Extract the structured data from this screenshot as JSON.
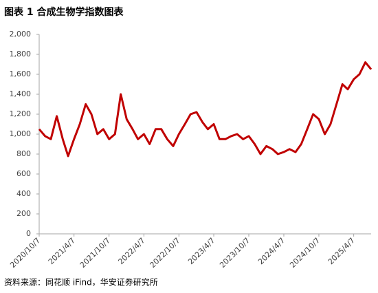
{
  "chart_data": {
    "type": "line",
    "title": "图表 1 合成生物学指数图表",
    "source": "资料来源：同花顺 iFind，华安证券研究所",
    "color": "#c00000",
    "x": [
      "2020/10/7",
      "2020/11/7",
      "2020/12/7",
      "2021/1/7",
      "2021/2/7",
      "2021/3/7",
      "2021/4/7",
      "2021/5/7",
      "2021/6/7",
      "2021/7/7",
      "2021/8/7",
      "2021/9/7",
      "2021/10/7",
      "2021/11/7",
      "2021/12/7",
      "2022/1/7",
      "2022/2/7",
      "2022/3/7",
      "2022/4/7",
      "2022/5/7",
      "2022/6/7",
      "2022/7/7",
      "2022/8/7",
      "2022/9/7",
      "2022/10/7",
      "2022/11/7",
      "2022/12/7",
      "2023/1/7",
      "2023/2/7",
      "2023/3/7",
      "2023/4/7",
      "2023/5/7",
      "2023/6/7",
      "2023/7/7",
      "2023/8/7",
      "2023/9/7",
      "2023/10/7",
      "2023/11/7",
      "2023/12/7",
      "2024/1/7",
      "2024/2/7",
      "2024/3/7",
      "2024/4/7",
      "2024/5/7",
      "2024/6/7",
      "2024/7/7",
      "2024/8/7",
      "2024/9/7",
      "2024/10/7",
      "2024/11/7",
      "2024/12/7",
      "2025/1/7",
      "2025/2/7",
      "2025/3/7",
      "2025/4/7",
      "2025/5/7",
      "2025/6/7",
      "2025/7/7"
    ],
    "values": [
      1050,
      980,
      950,
      1180,
      950,
      780,
      950,
      1100,
      1300,
      1200,
      1000,
      1050,
      950,
      1000,
      1400,
      1150,
      1050,
      950,
      1000,
      900,
      1050,
      1050,
      950,
      880,
      1000,
      1100,
      1200,
      1220,
      1120,
      1050,
      1100,
      950,
      950,
      980,
      1000,
      950,
      980,
      900,
      800,
      880,
      850,
      800,
      820,
      850,
      820,
      900,
      1050,
      1200,
      1150,
      1000,
      1100,
      1300,
      1500,
      1450,
      1550,
      1600,
      1720,
      1650
    ],
    "xticks": [
      "2020/10/7",
      "2021/4/7",
      "2021/10/7",
      "2022/4/7",
      "2022/10/7",
      "2023/4/7",
      "2023/10/7",
      "2024/4/7",
      "2024/10/7",
      "2025/4/7"
    ],
    "ylim": [
      0,
      2000
    ],
    "yticks": [
      0,
      200,
      400,
      600,
      800,
      {
        "value": 1000,
        "label": "1,000"
      },
      {
        "value": 1200,
        "label": "1,200"
      },
      {
        "value": 1400,
        "label": "1,400"
      },
      {
        "value": 1600,
        "label": "1,600"
      },
      {
        "value": 1800,
        "label": "1,800"
      },
      {
        "value": 2000,
        "label": "2,000"
      }
    ]
  }
}
